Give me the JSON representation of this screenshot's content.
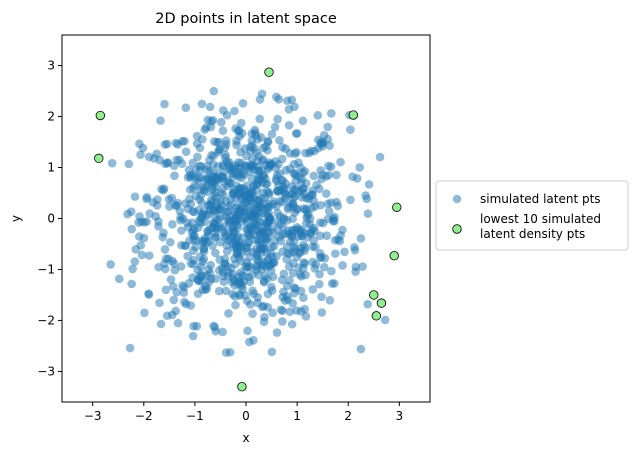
{
  "chart_data": {
    "type": "scatter",
    "title": "2D points in latent space",
    "xlabel": "x",
    "ylabel": "y",
    "xlim": [
      -3.6,
      3.6
    ],
    "ylim": [
      -3.6,
      3.6
    ],
    "xticks": [
      -3,
      -2,
      -1,
      0,
      1,
      2,
      3
    ],
    "yticks": [
      -3,
      -2,
      -1,
      0,
      1,
      2,
      3
    ],
    "grid": false,
    "legend_position": "center-right-outside",
    "series": [
      {
        "name": "simulated latent pts",
        "color": "#1f77b4",
        "opacity": 0.5,
        "n_points": 1000,
        "distribution": "standard-normal-2d",
        "x": [],
        "y": []
      },
      {
        "name": "lowest 10 simulated\nlatent density pts",
        "color": "#90ee90",
        "edgecolor": "#000000",
        "x": [
          -2.85,
          -2.88,
          0.45,
          2.1,
          2.95,
          2.9,
          2.5,
          2.65,
          2.55,
          -0.08
        ],
        "y": [
          2.02,
          1.18,
          2.87,
          2.03,
          0.22,
          -0.73,
          -1.5,
          -1.66,
          -1.91,
          -3.3
        ]
      }
    ]
  }
}
